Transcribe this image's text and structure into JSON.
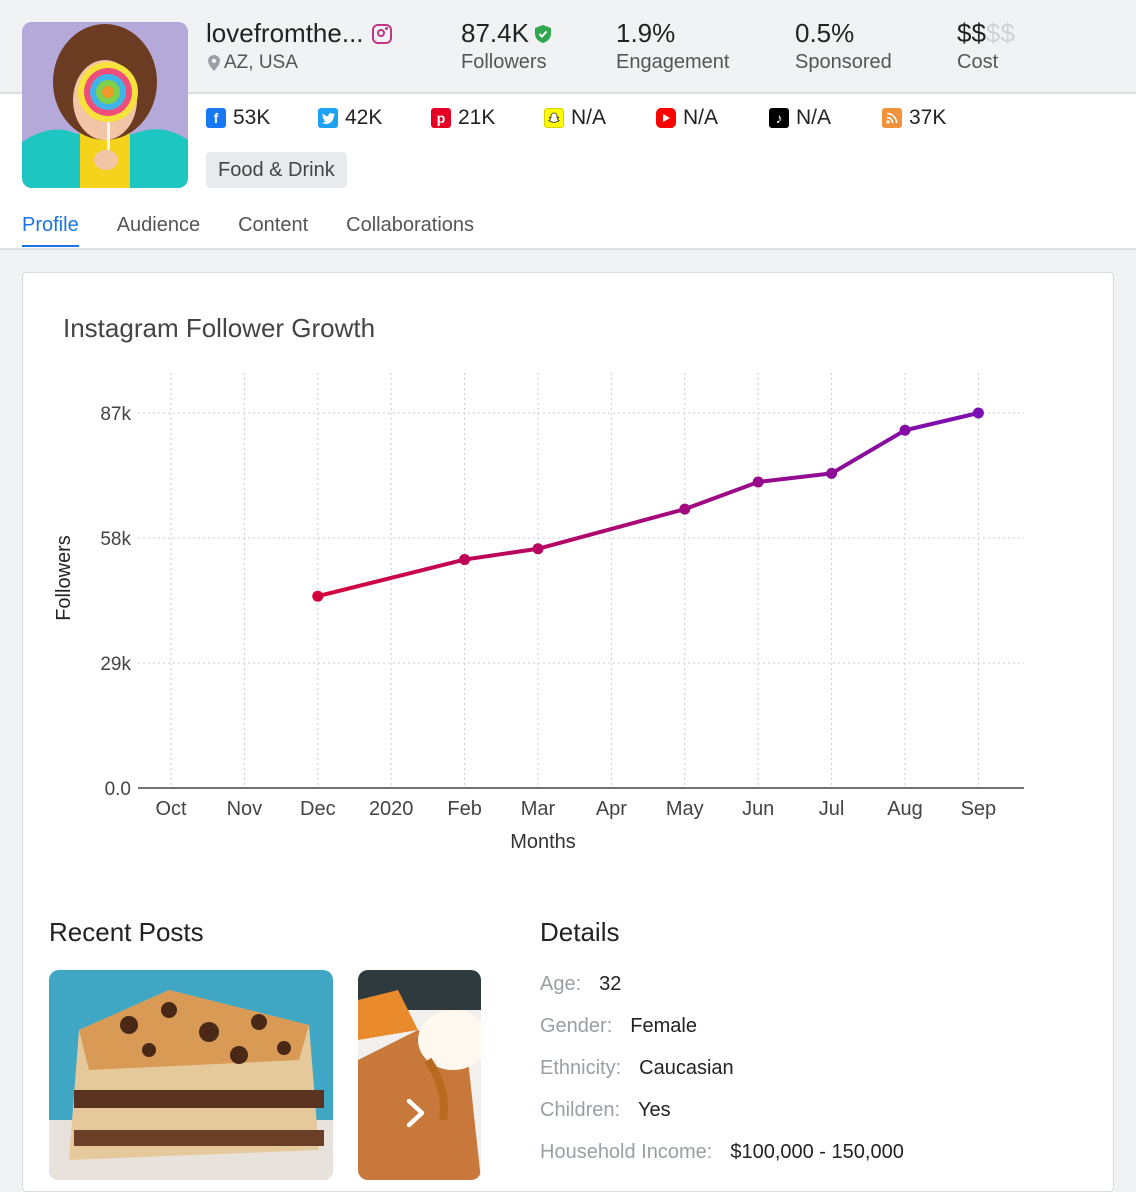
{
  "profile": {
    "handle": "lovefromthe...",
    "location": "AZ, USA",
    "category_tag": "Food & Drink"
  },
  "stats": [
    {
      "value": "87.4K",
      "label": "Followers",
      "verified": true
    },
    {
      "value": "1.9%",
      "label": "Engagement"
    },
    {
      "value": "0.5%",
      "label": "Sponsored"
    }
  ],
  "cost": {
    "filled": "$$",
    "dimmed": "$$",
    "label": "Cost",
    "level": 2,
    "max": 4
  },
  "socials": [
    {
      "icon": "facebook-icon",
      "value": "53K",
      "color": "#1877f2"
    },
    {
      "icon": "twitter-icon",
      "value": "42K",
      "color": "#1da1f2"
    },
    {
      "icon": "pinterest-icon",
      "value": "21K",
      "color": "#e60023"
    },
    {
      "icon": "snapchat-icon",
      "value": "N/A",
      "color": "#fffc00"
    },
    {
      "icon": "youtube-icon",
      "value": "N/A",
      "color": "#ff0000"
    },
    {
      "icon": "tiktok-icon",
      "value": "N/A",
      "color": "#000000"
    },
    {
      "icon": "rss-icon",
      "value": "37K",
      "color": "#f0923a"
    }
  ],
  "tabs": [
    "Profile",
    "Audience",
    "Content",
    "Collaborations"
  ],
  "active_tab": "Profile",
  "chart_data": {
    "type": "line",
    "title": "Instagram Follower Growth",
    "xlabel": "Months",
    "ylabel": "Followers",
    "categories": [
      "Oct",
      "Nov",
      "Dec",
      "2020",
      "Feb",
      "Mar",
      "Apr",
      "May",
      "Jun",
      "Jul",
      "Aug",
      "Sep"
    ],
    "y_tick_labels": [
      "0.0",
      "29k",
      "58k",
      "87k"
    ],
    "y_ticks": [
      0,
      29000,
      58000,
      87000
    ],
    "ylim": [
      0,
      87000
    ],
    "series": [
      {
        "x": [
          "Dec",
          "Feb",
          "Mar",
          "May",
          "Jun",
          "Jul",
          "Aug",
          "Sep"
        ],
        "values": [
          44500,
          53000,
          55500,
          64700,
          71000,
          73000,
          83000,
          87000
        ]
      }
    ],
    "line_color_start": "#d4003c",
    "line_color_end": "#7b0fb2",
    "grid": true
  },
  "recent_posts": {
    "title": "Recent Posts",
    "next_icon": "chevron-right-icon"
  },
  "details": {
    "title": "Details",
    "rows": [
      {
        "label": "Age:",
        "value": "32"
      },
      {
        "label": "Gender:",
        "value": "Female"
      },
      {
        "label": "Ethnicity:",
        "value": "Caucasian"
      },
      {
        "label": "Children:",
        "value": "Yes"
      },
      {
        "label": "Household Income:",
        "value": "$100,000 - 150,000"
      }
    ]
  }
}
